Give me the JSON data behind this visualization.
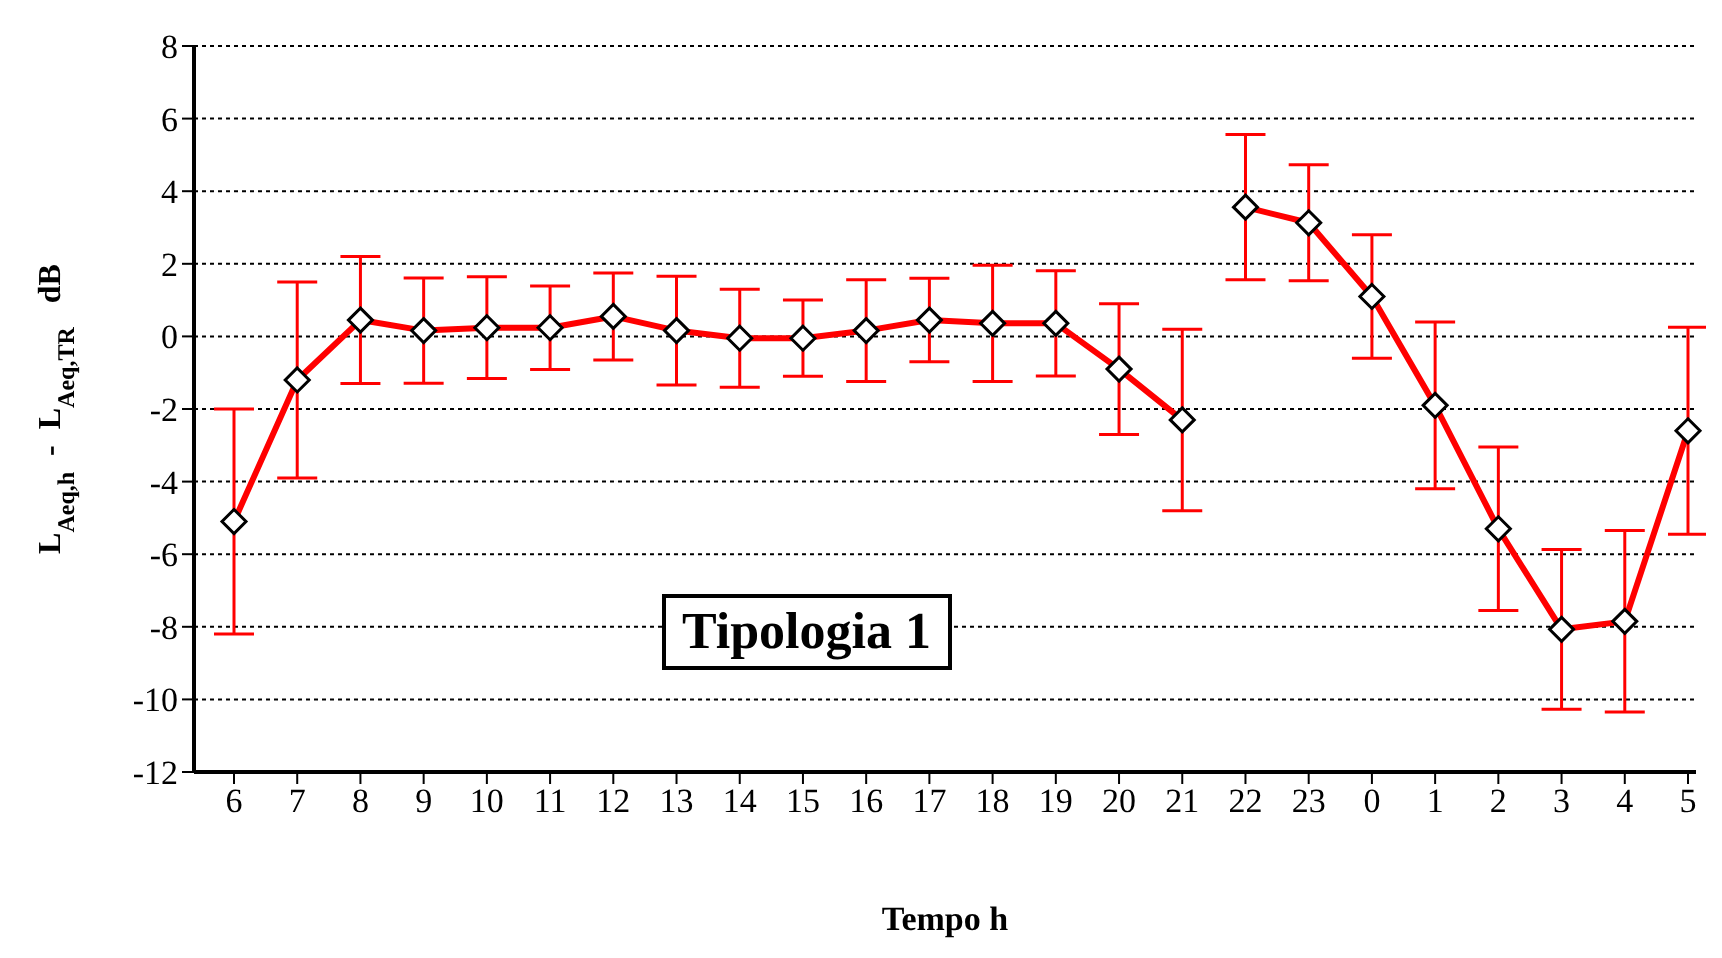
{
  "chart_data": {
    "type": "line",
    "xlabel": "Tempo h",
    "ylabel": "L$_{Aeq,h}$  -  L$_{Aeq,TR}$   dB",
    "annotations": [
      "Tipologia 1"
    ],
    "categories": [
      "6",
      "7",
      "8",
      "9",
      "10",
      "11",
      "12",
      "13",
      "14",
      "15",
      "16",
      "17",
      "18",
      "19",
      "20",
      "21",
      "22",
      "23",
      "0",
      "1",
      "2",
      "3",
      "4",
      "5"
    ],
    "series": [
      {
        "color": "#ff0000",
        "values": [
          -5.1,
          -1.2,
          0.45,
          0.16,
          0.24,
          0.24,
          0.55,
          0.16,
          -0.05,
          -0.05,
          0.16,
          0.45,
          0.36,
          0.36,
          -0.9,
          -2.3,
          null,
          null,
          null,
          null,
          null,
          null,
          null,
          null
        ],
        "errors": [
          3.1,
          2.7,
          1.75,
          1.45,
          1.4,
          1.15,
          1.2,
          1.5,
          1.35,
          1.05,
          1.4,
          1.15,
          1.6,
          1.45,
          1.8,
          2.5,
          null,
          null,
          null,
          null,
          null,
          null,
          null,
          null
        ]
      },
      {
        "color": "#ff0000",
        "values": [
          null,
          null,
          null,
          null,
          null,
          null,
          null,
          null,
          null,
          null,
          null,
          null,
          null,
          null,
          null,
          null,
          3.56,
          3.13,
          1.1,
          -1.9,
          -5.3,
          -8.07,
          -7.85,
          -2.6
        ],
        "errors": [
          null,
          null,
          null,
          null,
          null,
          null,
          null,
          null,
          null,
          null,
          null,
          null,
          null,
          null,
          null,
          null,
          2.0,
          1.6,
          1.7,
          2.3,
          2.25,
          2.2,
          2.5,
          2.85
        ]
      }
    ],
    "ylim": [
      -12,
      8
    ],
    "yticks": [
      -12,
      -10,
      -8,
      -6,
      -4,
      -2,
      0,
      2,
      4,
      6,
      8
    ],
    "grid": "y",
    "marker": "diamond",
    "line_style": "solid"
  }
}
